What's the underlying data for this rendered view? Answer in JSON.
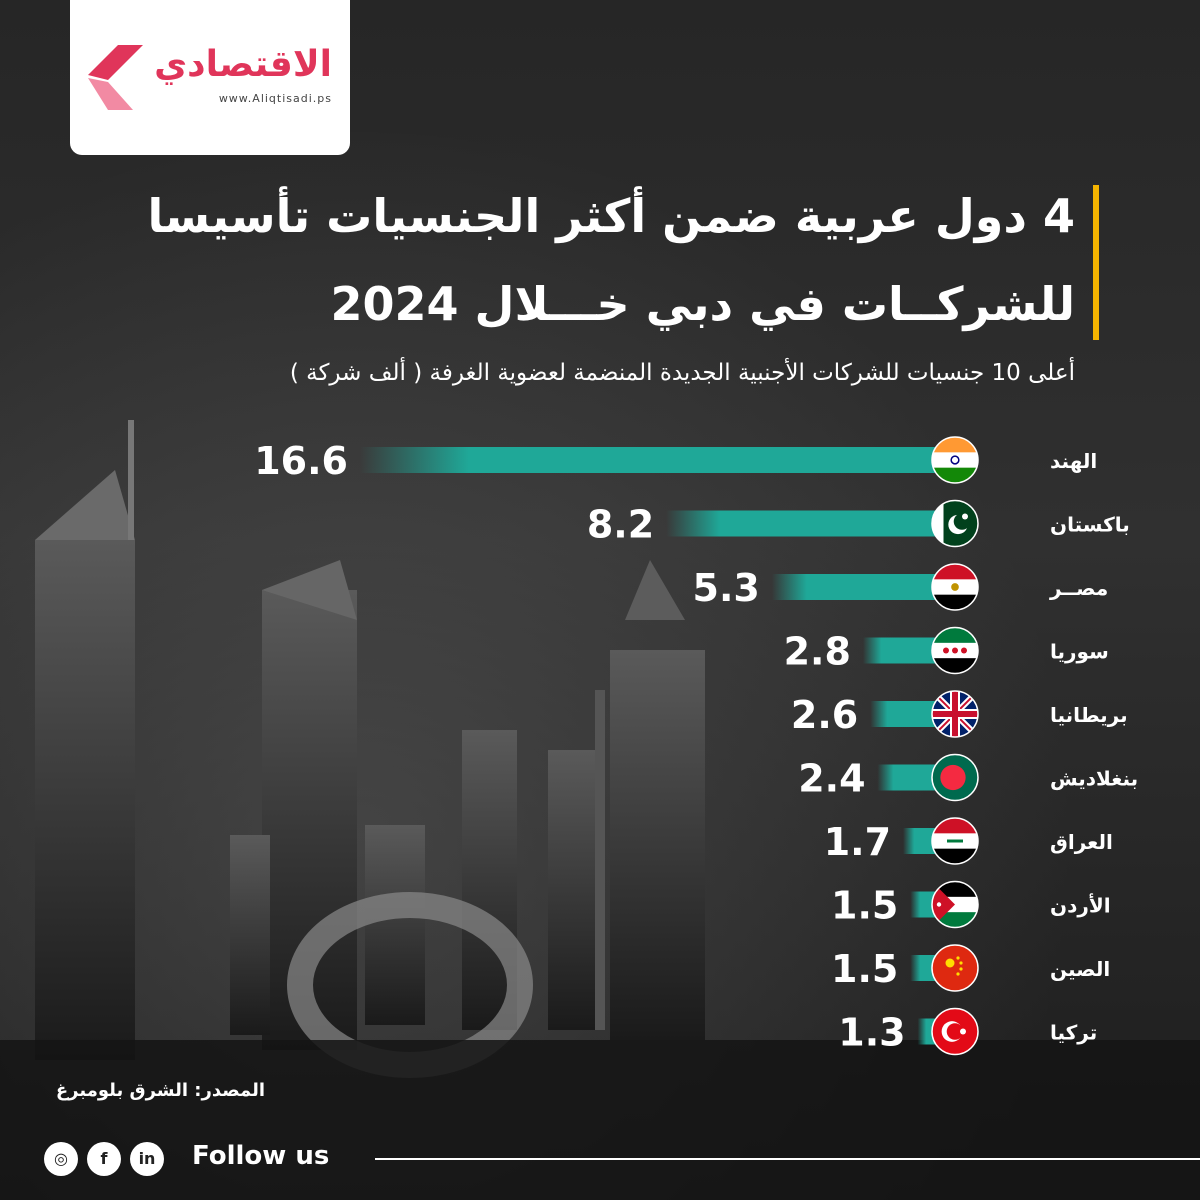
{
  "logo": {
    "name": "الاقتصادي",
    "url": "www.Aliqtisadi.ps",
    "accent": "#e0355a"
  },
  "title": {
    "line1": "4 دول عربية ضمن أكثر الجنسيات تأسيسا",
    "line2": "للشركــات في دبي  خـــلال 2024"
  },
  "subtitle": "أعلى 10 جنسيات للشركات الأجنبية الجديدة المنضمة لعضوية الغرفة ( ألف شركة )",
  "chart_data": {
    "type": "bar",
    "orientation": "horizontal",
    "categories": [
      "الهند",
      "باكستان",
      "مصــر",
      "سوريا",
      "بريطانيا",
      "بنغلاديش",
      "العراق",
      "الأردن",
      "الصين",
      "تركيا"
    ],
    "values": [
      16.6,
      8.2,
      5.3,
      2.8,
      2.6,
      2.4,
      1.7,
      1.5,
      1.5,
      1.3
    ],
    "labels": [
      "16.6",
      "8.2",
      "5.3",
      "2.8",
      "2.6",
      "2.4",
      "1.7",
      "1.5",
      "1.5",
      "1.3"
    ],
    "flags": [
      "flag-india",
      "flag-pakistan",
      "flag-egypt",
      "flag-syria",
      "flag-uk",
      "flag-bangladesh",
      "flag-iraq",
      "flag-jordan",
      "flag-china",
      "flag-turkey"
    ],
    "bar_color": "#1fa898",
    "xlim": [
      0,
      16.6
    ]
  },
  "source": "المصدر: الشرق بلومبرغ",
  "footer": {
    "follow_label": "Follow us",
    "icons": [
      "instagram-icon",
      "facebook-icon",
      "linkedin-icon"
    ],
    "icon_glyphs": [
      "◎",
      "f",
      "in"
    ]
  },
  "colors": {
    "title_bar": "#f5b400",
    "background": "#2b2b2b"
  }
}
